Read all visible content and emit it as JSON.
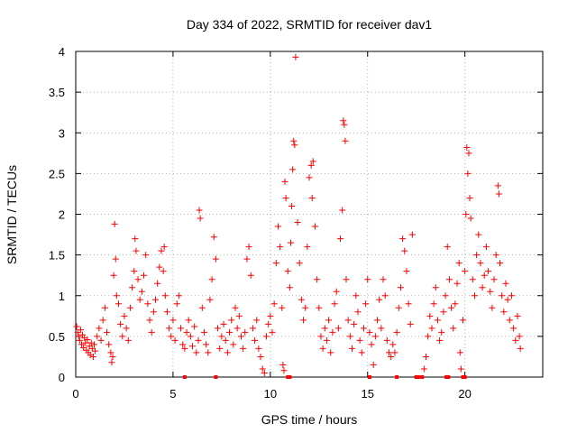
{
  "chart_data": {
    "type": "scatter",
    "title": "Day 334 of 2022, SRMTID for receiver dav1",
    "xlabel": "GPS time / hours",
    "ylabel": "SRMTID / TECUs",
    "xlim": [
      0,
      24
    ],
    "ylim": [
      0,
      4
    ],
    "x_ticks": [
      0,
      5,
      10,
      15,
      20
    ],
    "x_tick_labels": [
      "0",
      "5",
      "10",
      "15",
      "20"
    ],
    "y_ticks": [
      0,
      0.5,
      1,
      1.5,
      2,
      2.5,
      3,
      3.5,
      4
    ],
    "y_tick_labels": [
      "0",
      "0.5",
      "1",
      "1.5",
      "2",
      "2.5",
      "3",
      "3.5",
      "4"
    ],
    "grid": true,
    "marker": "+",
    "color": "#ff0000",
    "series": [
      {
        "name": "dav1",
        "points": [
          [
            0.05,
            0.62
          ],
          [
            0.1,
            0.55
          ],
          [
            0.15,
            0.5
          ],
          [
            0.2,
            0.45
          ],
          [
            0.25,
            0.58
          ],
          [
            0.3,
            0.4
          ],
          [
            0.35,
            0.52
          ],
          [
            0.4,
            0.36
          ],
          [
            0.45,
            0.48
          ],
          [
            0.5,
            0.42
          ],
          [
            0.55,
            0.33
          ],
          [
            0.6,
            0.46
          ],
          [
            0.65,
            0.3
          ],
          [
            0.7,
            0.38
          ],
          [
            0.75,
            0.27
          ],
          [
            0.8,
            0.42
          ],
          [
            0.85,
            0.35
          ],
          [
            0.9,
            0.25
          ],
          [
            0.95,
            0.4
          ],
          [
            1.0,
            0.32
          ],
          [
            1.1,
            0.5
          ],
          [
            1.2,
            0.6
          ],
          [
            1.3,
            0.45
          ],
          [
            1.4,
            0.7
          ],
          [
            1.5,
            0.85
          ],
          [
            1.6,
            0.55
          ],
          [
            1.7,
            0.4
          ],
          [
            1.8,
            0.3
          ],
          [
            1.85,
            0.18
          ],
          [
            1.9,
            0.25
          ],
          [
            1.95,
            1.25
          ],
          [
            2.0,
            1.88
          ],
          [
            2.05,
            1.45
          ],
          [
            2.1,
            1.0
          ],
          [
            2.2,
            0.9
          ],
          [
            2.3,
            0.65
          ],
          [
            2.4,
            0.5
          ],
          [
            2.5,
            0.75
          ],
          [
            2.6,
            0.6
          ],
          [
            2.7,
            0.45
          ],
          [
            2.8,
            0.85
          ],
          [
            2.9,
            1.1
          ],
          [
            3.0,
            1.3
          ],
          [
            3.05,
            1.7
          ],
          [
            3.1,
            1.55
          ],
          [
            3.2,
            1.2
          ],
          [
            3.3,
            0.95
          ],
          [
            3.4,
            1.05
          ],
          [
            3.5,
            1.25
          ],
          [
            3.6,
            1.5
          ],
          [
            3.7,
            0.9
          ],
          [
            3.8,
            0.7
          ],
          [
            3.9,
            0.55
          ],
          [
            4.0,
            0.8
          ],
          [
            4.1,
            0.95
          ],
          [
            4.2,
            1.15
          ],
          [
            4.3,
            1.35
          ],
          [
            4.4,
            1.55
          ],
          [
            4.5,
            1.3
          ],
          [
            4.55,
            1.6
          ],
          [
            4.6,
            1.0
          ],
          [
            4.7,
            0.8
          ],
          [
            4.8,
            0.6
          ],
          [
            4.9,
            0.5
          ],
          [
            5.0,
            0.7
          ],
          [
            5.1,
            0.45
          ],
          [
            5.2,
            0.9
          ],
          [
            5.3,
            1.0
          ],
          [
            5.4,
            0.6
          ],
          [
            5.5,
            0.4
          ],
          [
            5.6,
            0.35
          ],
          [
            5.7,
            0.55
          ],
          [
            5.8,
            0.7
          ],
          [
            5.9,
            0.5
          ],
          [
            6.0,
            0.38
          ],
          [
            6.1,
            0.62
          ],
          [
            6.2,
            0.3
          ],
          [
            6.3,
            0.45
          ],
          [
            6.35,
            2.05
          ],
          [
            6.4,
            1.95
          ],
          [
            6.5,
            0.85
          ],
          [
            6.6,
            0.55
          ],
          [
            6.7,
            0.4
          ],
          [
            6.8,
            0.3
          ],
          [
            6.9,
            0.95
          ],
          [
            7.0,
            1.2
          ],
          [
            7.1,
            1.72
          ],
          [
            7.2,
            1.45
          ],
          [
            7.3,
            0.6
          ],
          [
            7.4,
            0.35
          ],
          [
            7.5,
            0.5
          ],
          [
            7.6,
            0.65
          ],
          [
            7.7,
            0.45
          ],
          [
            7.8,
            0.3
          ],
          [
            7.9,
            0.55
          ],
          [
            8.0,
            0.7
          ],
          [
            8.1,
            0.4
          ],
          [
            8.2,
            0.85
          ],
          [
            8.3,
            0.6
          ],
          [
            8.4,
            0.75
          ],
          [
            8.5,
            0.5
          ],
          [
            8.6,
            0.35
          ],
          [
            8.7,
            0.55
          ],
          [
            8.8,
            1.45
          ],
          [
            8.9,
            1.6
          ],
          [
            9.0,
            1.25
          ],
          [
            9.1,
            0.6
          ],
          [
            9.2,
            0.45
          ],
          [
            9.3,
            0.7
          ],
          [
            9.4,
            0.35
          ],
          [
            9.5,
            0.25
          ],
          [
            9.6,
            0.1
          ],
          [
            9.7,
            0.05
          ],
          [
            9.8,
            0.5
          ],
          [
            9.9,
            0.65
          ],
          [
            10.0,
            0.75
          ],
          [
            10.1,
            0.55
          ],
          [
            10.2,
            0.9
          ],
          [
            10.3,
            1.4
          ],
          [
            10.4,
            1.85
          ],
          [
            10.5,
            1.6
          ],
          [
            10.6,
            0.85
          ],
          [
            10.65,
            0.15
          ],
          [
            10.7,
            0.08
          ],
          [
            10.75,
            2.4
          ],
          [
            10.8,
            2.2
          ],
          [
            10.9,
            1.3
          ],
          [
            11.0,
            1.1
          ],
          [
            11.05,
            1.65
          ],
          [
            11.1,
            2.1
          ],
          [
            11.15,
            2.55
          ],
          [
            11.2,
            2.9
          ],
          [
            11.25,
            2.85
          ],
          [
            11.3,
            3.93
          ],
          [
            11.4,
            1.9
          ],
          [
            11.5,
            1.4
          ],
          [
            11.6,
            0.95
          ],
          [
            11.7,
            0.7
          ],
          [
            11.8,
            0.85
          ],
          [
            11.9,
            1.6
          ],
          [
            12.0,
            2.45
          ],
          [
            12.1,
            2.6
          ],
          [
            12.15,
            2.2
          ],
          [
            12.2,
            2.65
          ],
          [
            12.3,
            1.85
          ],
          [
            12.4,
            1.2
          ],
          [
            12.5,
            0.85
          ],
          [
            12.6,
            0.5
          ],
          [
            12.7,
            0.35
          ],
          [
            12.8,
            0.6
          ],
          [
            12.9,
            0.45
          ],
          [
            13.0,
            0.7
          ],
          [
            13.1,
            0.3
          ],
          [
            13.2,
            0.55
          ],
          [
            13.3,
            0.9
          ],
          [
            13.4,
            1.05
          ],
          [
            13.5,
            0.6
          ],
          [
            13.6,
            1.7
          ],
          [
            13.7,
            2.05
          ],
          [
            13.75,
            3.15
          ],
          [
            13.8,
            3.1
          ],
          [
            13.85,
            2.9
          ],
          [
            13.9,
            1.2
          ],
          [
            14.0,
            0.7
          ],
          [
            14.1,
            0.5
          ],
          [
            14.2,
            0.35
          ],
          [
            14.3,
            0.65
          ],
          [
            14.4,
            1.0
          ],
          [
            14.5,
            0.8
          ],
          [
            14.6,
            0.45
          ],
          [
            14.7,
            0.3
          ],
          [
            14.8,
            0.6
          ],
          [
            14.9,
            0.9
          ],
          [
            15.0,
            1.2
          ],
          [
            15.1,
            0.55
          ],
          [
            15.2,
            0.4
          ],
          [
            15.3,
            0.15
          ],
          [
            15.4,
            0.5
          ],
          [
            15.5,
            0.7
          ],
          [
            15.6,
            0.95
          ],
          [
            15.7,
            0.6
          ],
          [
            15.8,
            1.2
          ],
          [
            15.9,
            1.0
          ],
          [
            16.0,
            0.45
          ],
          [
            16.1,
            0.3
          ],
          [
            16.2,
            0.25
          ],
          [
            16.3,
            0.4
          ],
          [
            16.4,
            0.3
          ],
          [
            16.5,
            0.55
          ],
          [
            16.6,
            0.85
          ],
          [
            16.7,
            1.1
          ],
          [
            16.8,
            1.7
          ],
          [
            16.9,
            1.55
          ],
          [
            17.0,
            1.3
          ],
          [
            17.1,
            0.9
          ],
          [
            17.2,
            0.65
          ],
          [
            17.3,
            1.75
          ],
          [
            17.9,
            0.1
          ],
          [
            18.0,
            0.25
          ],
          [
            18.1,
            0.5
          ],
          [
            18.2,
            0.75
          ],
          [
            18.3,
            0.6
          ],
          [
            18.4,
            0.9
          ],
          [
            18.5,
            1.1
          ],
          [
            18.6,
            0.7
          ],
          [
            18.7,
            0.45
          ],
          [
            18.8,
            0.55
          ],
          [
            18.9,
            0.8
          ],
          [
            19.0,
            1.0
          ],
          [
            19.1,
            1.6
          ],
          [
            19.2,
            1.2
          ],
          [
            19.3,
            0.85
          ],
          [
            19.4,
            0.6
          ],
          [
            19.5,
            0.9
          ],
          [
            19.6,
            1.15
          ],
          [
            19.7,
            1.4
          ],
          [
            19.75,
            0.3
          ],
          [
            19.8,
            0.1
          ],
          [
            19.9,
            0.7
          ],
          [
            20.0,
            1.3
          ],
          [
            20.05,
            2.0
          ],
          [
            20.1,
            2.82
          ],
          [
            20.15,
            2.5
          ],
          [
            20.2,
            2.75
          ],
          [
            20.25,
            2.2
          ],
          [
            20.3,
            1.95
          ],
          [
            20.4,
            1.2
          ],
          [
            20.5,
            1.0
          ],
          [
            20.6,
            1.5
          ],
          [
            20.7,
            1.75
          ],
          [
            20.8,
            1.4
          ],
          [
            20.9,
            1.1
          ],
          [
            21.0,
            1.25
          ],
          [
            21.1,
            1.6
          ],
          [
            21.2,
            1.3
          ],
          [
            21.3,
            1.05
          ],
          [
            21.4,
            0.85
          ],
          [
            21.5,
            1.2
          ],
          [
            21.6,
            1.5
          ],
          [
            21.7,
            2.35
          ],
          [
            21.75,
            2.25
          ],
          [
            21.8,
            1.4
          ],
          [
            21.9,
            1.0
          ],
          [
            22.0,
            0.8
          ],
          [
            22.1,
            1.15
          ],
          [
            22.2,
            0.95
          ],
          [
            22.3,
            0.7
          ],
          [
            22.4,
            1.0
          ],
          [
            22.5,
            0.6
          ],
          [
            22.6,
            0.45
          ],
          [
            22.7,
            0.75
          ],
          [
            22.8,
            0.5
          ],
          [
            22.85,
            0.35
          ]
        ],
        "zero_points": [
          5.6,
          7.2,
          10.9,
          11.0,
          15.1,
          16.5,
          17.5,
          17.6,
          17.8,
          19.05,
          19.15,
          19.9,
          20.0
        ]
      }
    ]
  }
}
